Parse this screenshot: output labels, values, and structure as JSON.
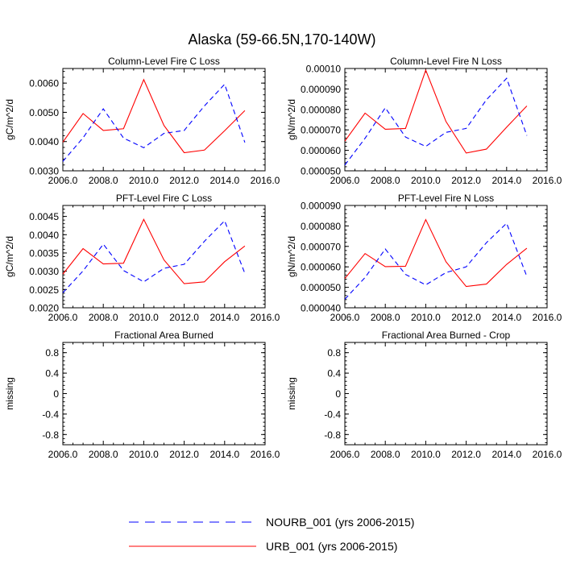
{
  "figure": {
    "title": "Alaska (59-66.5N,170-140W)"
  },
  "colors": {
    "urb": "#ff0000",
    "nourb": "#0000ff",
    "axis": "#000000"
  },
  "legend": {
    "items": [
      {
        "key": "nourb",
        "label": "NOURB_001 (yrs 2006-2015)",
        "style": "dashed"
      },
      {
        "key": "urb",
        "label": "URB_001 (yrs 2006-2015)",
        "style": "solid"
      }
    ]
  },
  "chart_data": [
    {
      "type": "line",
      "title": "Column-Level Fire C Loss",
      "xlabel": "",
      "ylabel": "gC/m^2/d",
      "xlim": [
        2006,
        2016
      ],
      "ylim": [
        0.003,
        0.0065
      ],
      "xticks": [
        2006,
        2008,
        2010,
        2012,
        2014,
        2016
      ],
      "xtick_labels": [
        "2006.0",
        "2008.0",
        "2010.0",
        "2012.0",
        "2014.0",
        "2016.0"
      ],
      "yticks": [
        0.003,
        0.004,
        0.005,
        0.006
      ],
      "ytick_labels": [
        "0.0030",
        "0.0040",
        "0.0050",
        "0.0060"
      ],
      "ytick_decimals": 4,
      "x": [
        2006,
        2007,
        2008,
        2009,
        2010,
        2011,
        2012,
        2013,
        2014,
        2015
      ],
      "series": [
        {
          "name": "URB_001 (yrs 2006-2015)",
          "key": "urb",
          "values": [
            0.00398,
            0.00496,
            0.00438,
            0.00444,
            0.00612,
            0.00455,
            0.00362,
            0.00371,
            0.00437,
            0.00506
          ]
        },
        {
          "name": "NOURB_001 (yrs 2006-2015)",
          "key": "nourb",
          "values": [
            0.00332,
            0.00413,
            0.00512,
            0.00412,
            0.00379,
            0.00428,
            0.00438,
            0.00522,
            0.00596,
            0.00397
          ]
        }
      ]
    },
    {
      "type": "line",
      "title": "Column-Level Fire N Loss",
      "xlabel": "",
      "ylabel": "gN/m^2/d",
      "xlim": [
        2006,
        2016
      ],
      "ylim": [
        5e-05,
        0.0001
      ],
      "xticks": [
        2006,
        2008,
        2010,
        2012,
        2014,
        2016
      ],
      "xtick_labels": [
        "2006.0",
        "2008.0",
        "2010.0",
        "2012.0",
        "2014.0",
        "2016.0"
      ],
      "yticks": [
        5e-05,
        6e-05,
        7e-05,
        8e-05,
        9e-05,
        0.0001
      ],
      "ytick_labels": [
        "0.000050",
        "0.000060",
        "0.000070",
        "0.000080",
        "0.000090",
        "0.00010"
      ],
      "ytick_decimals": 6,
      "x": [
        2006,
        2007,
        2008,
        2009,
        2010,
        2011,
        2012,
        2013,
        2014,
        2015
      ],
      "series": [
        {
          "name": "URB_001 (yrs 2006-2015)",
          "key": "urb",
          "values": [
            6.45e-05,
            7.82e-05,
            7.03e-05,
            7.07e-05,
            9.92e-05,
            7.41e-05,
            5.87e-05,
            6.06e-05,
            7.13e-05,
            8.17e-05
          ]
        },
        {
          "name": "NOURB_001 (yrs 2006-2015)",
          "key": "nourb",
          "values": [
            5.28e-05,
            6.59e-05,
            8.08e-05,
            6.65e-05,
            6.19e-05,
            6.88e-05,
            7.07e-05,
            8.47e-05,
            9.52e-05,
            6.72e-05
          ]
        }
      ]
    },
    {
      "type": "line",
      "title": "PFT-Level Fire C Loss",
      "xlabel": "",
      "ylabel": "gC/m^2/d",
      "xlim": [
        2006,
        2016
      ],
      "ylim": [
        0.002,
        0.0048
      ],
      "xticks": [
        2006,
        2008,
        2010,
        2012,
        2014,
        2016
      ],
      "xtick_labels": [
        "2006.0",
        "2008.0",
        "2010.0",
        "2012.0",
        "2014.0",
        "2016.0"
      ],
      "yticks": [
        0.002,
        0.0025,
        0.003,
        0.0035,
        0.004,
        0.0045
      ],
      "ytick_labels": [
        "0.0020",
        "0.0025",
        "0.0030",
        "0.0035",
        "0.0040",
        "0.0045"
      ],
      "ytick_decimals": 4,
      "x": [
        2006,
        2007,
        2008,
        2009,
        2010,
        2011,
        2012,
        2013,
        2014,
        2015
      ],
      "series": [
        {
          "name": "URB_001 (yrs 2006-2015)",
          "key": "urb",
          "values": [
            0.00292,
            0.00362,
            0.0032,
            0.00322,
            0.00442,
            0.00331,
            0.00266,
            0.00271,
            0.00326,
            0.00369
          ]
        },
        {
          "name": "NOURB_001 (yrs 2006-2015)",
          "key": "nourb",
          "values": [
            0.00241,
            0.00301,
            0.00374,
            0.00302,
            0.00271,
            0.00308,
            0.00319,
            0.00382,
            0.00438,
            0.00294
          ]
        }
      ]
    },
    {
      "type": "line",
      "title": "PFT-Level Fire N Loss",
      "xlabel": "",
      "ylabel": "gN/m^2/d",
      "xlim": [
        2006,
        2016
      ],
      "ylim": [
        4e-05,
        9e-05
      ],
      "xticks": [
        2006,
        2008,
        2010,
        2012,
        2014,
        2016
      ],
      "xtick_labels": [
        "2006.0",
        "2008.0",
        "2010.0",
        "2012.0",
        "2014.0",
        "2016.0"
      ],
      "yticks": [
        4e-05,
        5e-05,
        6e-05,
        7e-05,
        8e-05,
        9e-05
      ],
      "ytick_labels": [
        "0.000040",
        "0.000050",
        "0.000060",
        "0.000070",
        "0.000080",
        "0.000090"
      ],
      "ytick_decimals": 6,
      "x": [
        2006,
        2007,
        2008,
        2009,
        2010,
        2011,
        2012,
        2013,
        2014,
        2015
      ],
      "series": [
        {
          "name": "URB_001 (yrs 2006-2015)",
          "key": "urb",
          "values": [
            5.43e-05,
            6.65e-05,
            6.01e-05,
            6.03e-05,
            8.31e-05,
            6.25e-05,
            5.04e-05,
            5.16e-05,
            6.12e-05,
            6.91e-05
          ]
        },
        {
          "name": "NOURB_001 (yrs 2006-2015)",
          "key": "nourb",
          "values": [
            4.42e-05,
            5.48e-05,
            6.87e-05,
            5.63e-05,
            5.12e-05,
            5.72e-05,
            6e-05,
            7.18e-05,
            8.13e-05,
            5.53e-05
          ]
        }
      ]
    },
    {
      "type": "line",
      "title": "Fractional Area Burned",
      "xlabel": "",
      "ylabel": "missing",
      "xlim": [
        2006,
        2016
      ],
      "ylim": [
        -1,
        1
      ],
      "xticks": [
        2006,
        2008,
        2010,
        2012,
        2014,
        2016
      ],
      "xtick_labels": [
        "2006.0",
        "2008.0",
        "2010.0",
        "2012.0",
        "2014.0",
        "2016.0"
      ],
      "yticks": [
        -0.8,
        -0.4,
        0,
        0.4,
        0.8
      ],
      "ytick_labels": [
        "-0.8",
        "-0.4",
        "0",
        "0.4",
        "0.8"
      ],
      "ytick_decimals": 1,
      "x": [],
      "series": []
    },
    {
      "type": "line",
      "title": "Fractional Area Burned - Crop",
      "xlabel": "",
      "ylabel": "missing",
      "xlim": [
        2006,
        2016
      ],
      "ylim": [
        -1,
        1
      ],
      "xticks": [
        2006,
        2008,
        2010,
        2012,
        2014,
        2016
      ],
      "xtick_labels": [
        "2006.0",
        "2008.0",
        "2010.0",
        "2012.0",
        "2014.0",
        "2016.0"
      ],
      "yticks": [
        -0.8,
        -0.4,
        0,
        0.4,
        0.8
      ],
      "ytick_labels": [
        "-0.8",
        "-0.4",
        "0",
        "0.4",
        "0.8"
      ],
      "ytick_decimals": 1,
      "x": [],
      "series": []
    }
  ]
}
